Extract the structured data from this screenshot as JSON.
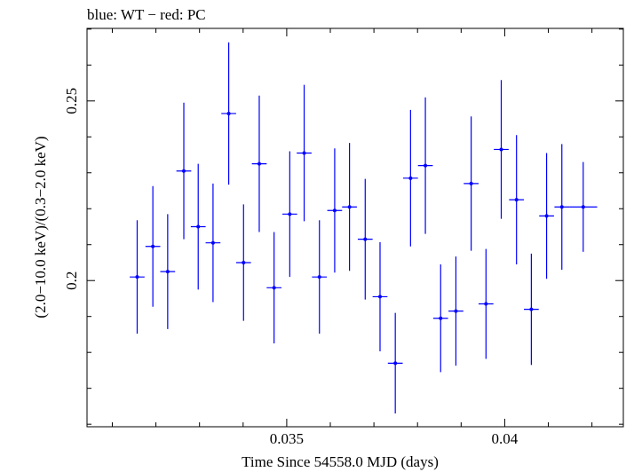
{
  "chart_data": {
    "type": "scatter",
    "title": "blue: WT − red: PC",
    "xlabel": "Time Since 54558.0 MJD (days)",
    "ylabel": "(2.0−10.0 keV)/(0.3−2.0 keV)",
    "xlim": [
      0.03042,
      0.04272
    ],
    "ylim": [
      0.1593,
      0.2702
    ],
    "x_ticks": [
      0.035,
      0.04
    ],
    "x_tick_labels": [
      "0.035",
      "0.04"
    ],
    "y_ticks": [
      0.2,
      0.25
    ],
    "y_tick_labels": [
      "0.2",
      "0.25"
    ],
    "grid": false,
    "legend": "none",
    "series": [
      {
        "color": "#0000ff",
        "marker": "dot with x and y error bars",
        "points": [
          {
            "x": 0.03157,
            "xerr": 0.00017,
            "y": 0.201,
            "yerr": 0.0158
          },
          {
            "x": 0.03193,
            "xerr": 0.00017,
            "y": 0.2095,
            "yerr": 0.0168
          },
          {
            "x": 0.03227,
            "xerr": 0.00017,
            "y": 0.2025,
            "yerr": 0.016
          },
          {
            "x": 0.03264,
            "xerr": 0.00017,
            "y": 0.2305,
            "yerr": 0.019
          },
          {
            "x": 0.03297,
            "xerr": 0.00017,
            "y": 0.215,
            "yerr": 0.0175
          },
          {
            "x": 0.03331,
            "xerr": 0.00017,
            "y": 0.2105,
            "yerr": 0.0165
          },
          {
            "x": 0.03367,
            "xerr": 0.00017,
            "y": 0.2465,
            "yerr": 0.0198
          },
          {
            "x": 0.03401,
            "xerr": 0.00017,
            "y": 0.205,
            "yerr": 0.0162
          },
          {
            "x": 0.03437,
            "xerr": 0.00017,
            "y": 0.2325,
            "yerr": 0.019
          },
          {
            "x": 0.03471,
            "xerr": 0.00017,
            "y": 0.198,
            "yerr": 0.0155
          },
          {
            "x": 0.03507,
            "xerr": 0.00017,
            "y": 0.2185,
            "yerr": 0.0175
          },
          {
            "x": 0.0354,
            "xerr": 0.00017,
            "y": 0.2355,
            "yerr": 0.019
          },
          {
            "x": 0.03575,
            "xerr": 0.00017,
            "y": 0.201,
            "yerr": 0.0158
          },
          {
            "x": 0.0361,
            "xerr": 0.00017,
            "y": 0.2195,
            "yerr": 0.0173
          },
          {
            "x": 0.03644,
            "xerr": 0.00017,
            "y": 0.2205,
            "yerr": 0.0178
          },
          {
            "x": 0.0368,
            "xerr": 0.00017,
            "y": 0.2115,
            "yerr": 0.0168
          },
          {
            "x": 0.03714,
            "xerr": 0.00017,
            "y": 0.1955,
            "yerr": 0.0152
          },
          {
            "x": 0.03749,
            "xerr": 0.00017,
            "y": 0.177,
            "yerr": 0.014
          },
          {
            "x": 0.03784,
            "xerr": 0.00017,
            "y": 0.2285,
            "yerr": 0.019
          },
          {
            "x": 0.03818,
            "xerr": 0.00017,
            "y": 0.232,
            "yerr": 0.019
          },
          {
            "x": 0.03853,
            "xerr": 0.00017,
            "y": 0.1895,
            "yerr": 0.015
          },
          {
            "x": 0.03888,
            "xerr": 0.00017,
            "y": 0.1915,
            "yerr": 0.0152
          },
          {
            "x": 0.03923,
            "xerr": 0.00017,
            "y": 0.227,
            "yerr": 0.0187
          },
          {
            "x": 0.03957,
            "xerr": 0.00017,
            "y": 0.1935,
            "yerr": 0.0153
          },
          {
            "x": 0.03992,
            "xerr": 0.00017,
            "y": 0.2365,
            "yerr": 0.0193
          },
          {
            "x": 0.04027,
            "xerr": 0.00017,
            "y": 0.2225,
            "yerr": 0.018
          },
          {
            "x": 0.04061,
            "xerr": 0.00017,
            "y": 0.192,
            "yerr": 0.0155
          },
          {
            "x": 0.04096,
            "xerr": 0.00017,
            "y": 0.218,
            "yerr": 0.0175
          },
          {
            "x": 0.04131,
            "xerr": 0.00017,
            "y": 0.2205,
            "yerr": 0.0175
          },
          {
            "x": 0.0418,
            "xerr": 0.00032,
            "y": 0.2205,
            "yerr": 0.0125
          }
        ]
      }
    ]
  }
}
